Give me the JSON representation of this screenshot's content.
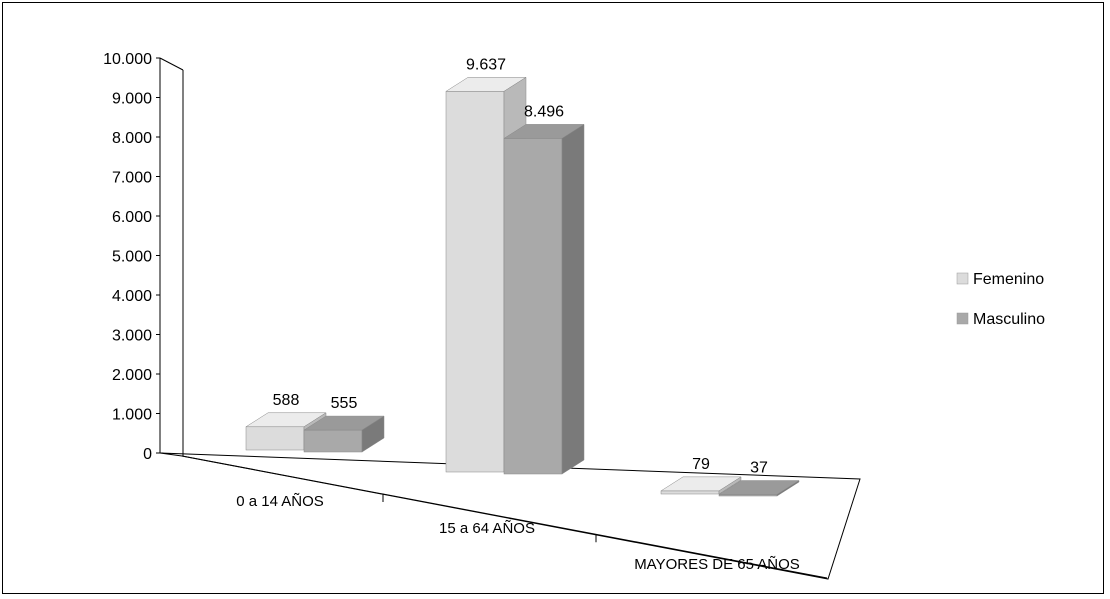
{
  "chart_data": {
    "type": "bar",
    "categories": [
      "0 a 14 AÑOS",
      "15 a 64 AÑOS",
      "MAYORES DE 65 AÑOS"
    ],
    "series": [
      {
        "name": "Femenino",
        "values": [
          588,
          9637,
          79
        ],
        "labels": [
          "588",
          "9.637",
          "79"
        ]
      },
      {
        "name": "Masculino",
        "values": [
          555,
          8496,
          37
        ],
        "labels": [
          "555",
          "8.496",
          "37"
        ]
      }
    ],
    "y_ticks": [
      "0",
      "1.000",
      "2.000",
      "3.000",
      "4.000",
      "5.000",
      "6.000",
      "7.000",
      "8.000",
      "9.000",
      "10.000"
    ],
    "ylim": [
      0,
      10000
    ],
    "grid": false,
    "legend": "right",
    "style": "3d-clustered-column",
    "colors": {
      "Femenino": {
        "front": "#dcdcdc",
        "top": "#ececec",
        "side": "#b9b9b9"
      },
      "Masculino": {
        "front": "#a9a9a9",
        "top": "#9a9a9a",
        "side": "#7a7a7a"
      }
    }
  }
}
